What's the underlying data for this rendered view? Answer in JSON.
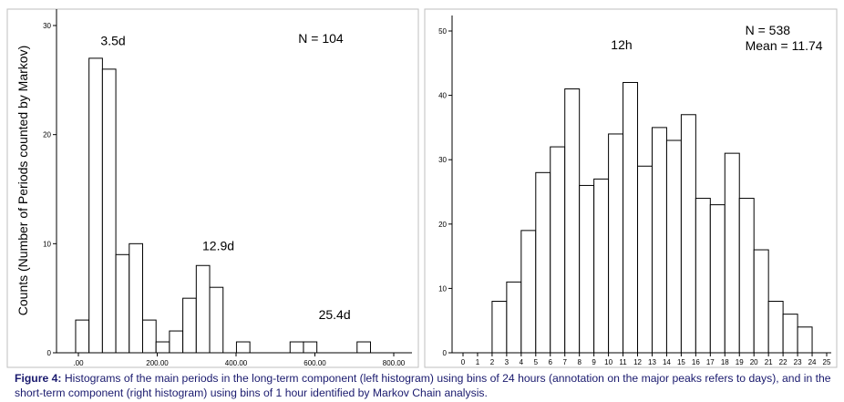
{
  "chart_data": [
    {
      "type": "bar",
      "ylabel": "Counts (Number of Periods counted by Markov)",
      "xlabel": "",
      "xlim": [
        0,
        800
      ],
      "ylim": [
        0,
        30
      ],
      "x_ticks": [
        0,
        200,
        400,
        600,
        800
      ],
      "x_tick_labels": [
        ".00",
        "200.00",
        "400.00",
        "600.00",
        "800.00"
      ],
      "y_ticks": [
        0,
        10,
        20,
        30
      ],
      "y_tick_labels": [
        "0",
        "10",
        "20",
        "30"
      ],
      "bin_width": 34,
      "bins": [
        {
          "x": 10,
          "count": 3
        },
        {
          "x": 44,
          "count": 27
        },
        {
          "x": 78,
          "count": 26
        },
        {
          "x": 112,
          "count": 9
        },
        {
          "x": 146,
          "count": 10
        },
        {
          "x": 180,
          "count": 3
        },
        {
          "x": 214,
          "count": 1
        },
        {
          "x": 248,
          "count": 2
        },
        {
          "x": 282,
          "count": 5
        },
        {
          "x": 316,
          "count": 8
        },
        {
          "x": 350,
          "count": 6
        },
        {
          "x": 418,
          "count": 1
        },
        {
          "x": 554,
          "count": 1
        },
        {
          "x": 588,
          "count": 1
        },
        {
          "x": 724,
          "count": 1
        }
      ],
      "annotations": [
        {
          "text": "3.5d",
          "x": 88,
          "y": 28.2
        },
        {
          "text": "12.9d",
          "x": 355,
          "y": 9.4
        },
        {
          "text": "25.4d",
          "x": 650,
          "y": 3.1
        },
        {
          "text": "N = 104",
          "x": 615,
          "y": 28.4
        }
      ],
      "grid": false
    },
    {
      "type": "bar",
      "xlabel": "",
      "ylabel": "",
      "xlim": [
        0,
        25
      ],
      "ylim": [
        0,
        50
      ],
      "x_tick_labels": [
        "0",
        "1",
        "2",
        "3",
        "4",
        "5",
        "6",
        "7",
        "8",
        "9",
        "10",
        "11",
        "12",
        "13",
        "14",
        "15",
        "16",
        "17",
        "18",
        "19",
        "20",
        "21",
        "22",
        "23",
        "24",
        "25"
      ],
      "y_ticks": [
        0,
        10,
        20,
        30,
        40,
        50
      ],
      "y_tick_labels": [
        "0",
        "10",
        "20",
        "30",
        "40",
        "50"
      ],
      "bins": [
        {
          "x": 2,
          "count": 8
        },
        {
          "x": 3,
          "count": 11
        },
        {
          "x": 4,
          "count": 19
        },
        {
          "x": 5,
          "count": 28
        },
        {
          "x": 6,
          "count": 32
        },
        {
          "x": 7,
          "count": 41
        },
        {
          "x": 8,
          "count": 26
        },
        {
          "x": 9,
          "count": 27
        },
        {
          "x": 10,
          "count": 34
        },
        {
          "x": 11,
          "count": 42
        },
        {
          "x": 12,
          "count": 29
        },
        {
          "x": 13,
          "count": 35
        },
        {
          "x": 14,
          "count": 33
        },
        {
          "x": 15,
          "count": 37
        },
        {
          "x": 16,
          "count": 24
        },
        {
          "x": 17,
          "count": 23
        },
        {
          "x": 18,
          "count": 31
        },
        {
          "x": 19,
          "count": 24
        },
        {
          "x": 20,
          "count": 16
        },
        {
          "x": 21,
          "count": 8
        },
        {
          "x": 22,
          "count": 6
        },
        {
          "x": 23,
          "count": 4
        }
      ],
      "annotations": [
        {
          "text": "12h",
          "x": 10.9,
          "y": 47.2
        },
        {
          "text": "N = 538",
          "x": 19.4,
          "y": 49.4
        },
        {
          "text": "Mean = 11.74",
          "x": 19.4,
          "y": 47.0
        }
      ],
      "grid": false
    }
  ],
  "caption": {
    "label": "Figure 4:",
    "text": " Histograms of the main periods in the long-term component (left histogram) using bins of 24 hours (annotation on the major peaks refers to days), and in the short-term component (right histogram) using bins of 1 hour identified by Markov Chain analysis."
  },
  "colors": {
    "bar_fill": "#ffffff",
    "bar_stroke": "#000000",
    "axis": "#000000",
    "caption_text": "#1a1a6e",
    "panel_border": "#bfbfbf"
  }
}
